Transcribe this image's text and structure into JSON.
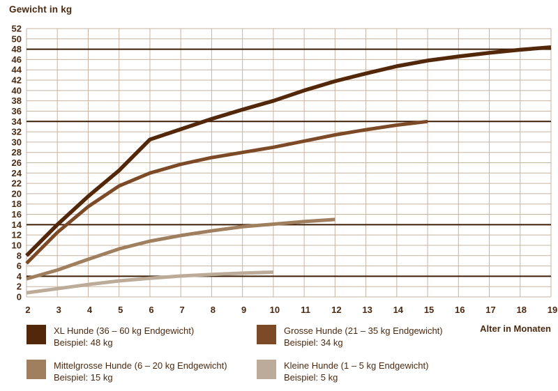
{
  "chart": {
    "title": "Gewicht in kg",
    "xlabel": "Alter in Monaten",
    "ylabel": "Gewicht in kg"
  },
  "colors": {
    "background": "#ffffff",
    "grid": "#c8b39f",
    "reference_line": "#3b1d04",
    "text": "#4b2a11",
    "xl": "#53270a",
    "grosse": "#7c4a27",
    "mittelgrosse": "#a07f5e",
    "kleine": "#bdab99"
  },
  "chart_data": {
    "type": "line",
    "title": "Gewicht in kg",
    "xlabel": "Alter in Monaten",
    "ylabel": "Gewicht in kg",
    "xlim": [
      2,
      19
    ],
    "ylim": [
      0,
      52
    ],
    "grid": true,
    "x_ticks": [
      2,
      3,
      4,
      5,
      6,
      7,
      8,
      9,
      10,
      11,
      12,
      13,
      14,
      15,
      16,
      17,
      18,
      19
    ],
    "y_ticks": [
      0,
      2,
      4,
      6,
      8,
      10,
      12,
      14,
      16,
      18,
      20,
      22,
      24,
      26,
      28,
      30,
      32,
      34,
      36,
      38,
      40,
      42,
      44,
      46,
      48,
      50,
      52
    ],
    "reference_lines": [
      48,
      34,
      14,
      4
    ],
    "series": [
      {
        "name": "XL Hunde (36 – 60 kg Endgewicht)",
        "example_kg": 48,
        "color": "#53270a",
        "stroke_width": 5.5,
        "x": [
          2,
          3,
          4,
          5,
          6,
          7,
          8,
          9,
          10,
          11,
          12,
          13,
          14,
          15,
          16,
          17,
          18,
          19
        ],
        "values": [
          8,
          14,
          19.5,
          24.5,
          30.5,
          32.5,
          34.5,
          36.3,
          38,
          40,
          41.8,
          43.3,
          44.7,
          45.8,
          46.6,
          47.3,
          47.9,
          48.4
        ]
      },
      {
        "name": "Grosse Hunde (21 – 35 kg Endgewicht)",
        "example_kg": 34,
        "color": "#7c4a27",
        "stroke_width": 5,
        "x": [
          2,
          3,
          4,
          5,
          6,
          7,
          8,
          9,
          10,
          11,
          12,
          13,
          14,
          15
        ],
        "values": [
          6.5,
          12.5,
          17.5,
          21.5,
          24,
          25.7,
          27,
          28,
          29,
          30.2,
          31.4,
          32.4,
          33.3,
          34
        ]
      },
      {
        "name": "Mittelgrosse Hunde (6 – 20 kg Endgewicht)",
        "example_kg": 15,
        "color": "#a07f5e",
        "stroke_width": 5,
        "x": [
          2,
          3,
          4,
          5,
          6,
          7,
          8,
          9,
          10,
          11,
          12
        ],
        "values": [
          3.5,
          5.2,
          7.3,
          9.3,
          10.8,
          11.9,
          12.8,
          13.6,
          14.1,
          14.6,
          15
        ]
      },
      {
        "name": "Kleine Hunde (1 – 5 kg Endgewicht)",
        "example_kg": 5,
        "color": "#bdab99",
        "stroke_width": 5,
        "x": [
          2,
          3,
          4,
          5,
          6,
          7,
          8,
          9,
          10
        ],
        "values": [
          0.8,
          1.6,
          2.4,
          3.1,
          3.6,
          4.05,
          4.35,
          4.6,
          4.8
        ]
      }
    ]
  },
  "legend": {
    "items": [
      {
        "label": "XL Hunde (36 – 60 kg Endgewicht)",
        "example": "Beispiel: 48 kg",
        "color": "#53270a"
      },
      {
        "label": "Grosse Hunde (21 – 35 kg Endgewicht)",
        "example": "Beispiel: 34 kg",
        "color": "#7c4a27"
      },
      {
        "label": "Mittelgrosse Hunde (6 – 20 kg Endgewicht)",
        "example": "Beispiel: 15 kg",
        "color": "#a07f5e"
      },
      {
        "label": "Kleine Hunde (1 – 5 kg Endgewicht)",
        "example": "Beispiel: 5 kg",
        "color": "#bdab99"
      }
    ]
  }
}
